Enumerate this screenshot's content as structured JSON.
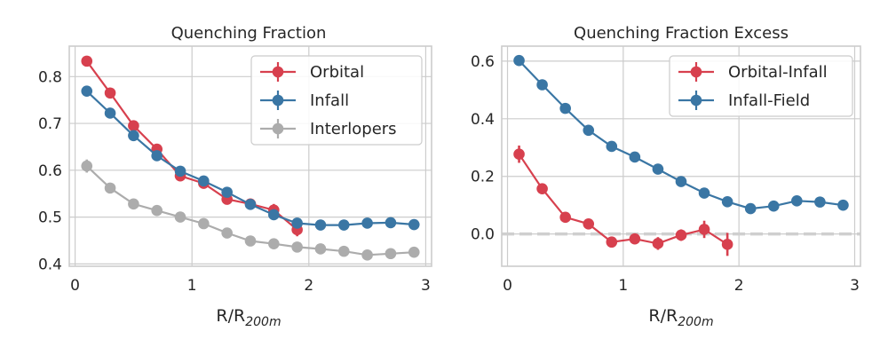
{
  "chart_data": [
    {
      "type": "line",
      "title": "Quenching Fraction",
      "xlabel": "R/R",
      "xlabel_sub": "200m",
      "xlim": [
        -0.05,
        3.05
      ],
      "ylim": [
        0.395,
        0.865
      ],
      "xticks": [
        0,
        1,
        2,
        3
      ],
      "yticks": [
        0.4,
        0.5,
        0.6,
        0.7,
        0.8
      ],
      "ytick_labels": [
        "0.4",
        "0.5",
        "0.6",
        "0.7",
        "0.8"
      ],
      "grid": true,
      "legend_position": "top-right",
      "series": [
        {
          "name": "Orbital",
          "color": "#d7404e",
          "x": [
            0.1,
            0.3,
            0.5,
            0.7,
            0.9,
            1.1,
            1.3,
            1.5,
            1.7,
            1.9
          ],
          "y": [
            0.833,
            0.765,
            0.695,
            0.645,
            0.588,
            0.572,
            0.538,
            0.528,
            0.515,
            0.473
          ],
          "err": [
            0.006,
            0.007,
            0.008,
            0.009,
            0.009,
            0.01,
            0.01,
            0.011,
            0.013,
            0.014
          ]
        },
        {
          "name": "Infall",
          "color": "#3a76a4",
          "x": [
            0.1,
            0.3,
            0.5,
            0.7,
            0.9,
            1.1,
            1.3,
            1.5,
            1.7,
            1.9,
            2.1,
            2.3,
            2.5,
            2.7,
            2.9
          ],
          "y": [
            0.769,
            0.722,
            0.674,
            0.631,
            0.598,
            0.577,
            0.553,
            0.527,
            0.505,
            0.487,
            0.483,
            0.483,
            0.487,
            0.488,
            0.484
          ],
          "err": [
            0.005,
            0.005,
            0.005,
            0.005,
            0.005,
            0.005,
            0.005,
            0.005,
            0.005,
            0.005,
            0.005,
            0.005,
            0.005,
            0.005,
            0.005
          ]
        },
        {
          "name": "Interlopers",
          "color": "#acacac",
          "x": [
            0.1,
            0.3,
            0.5,
            0.7,
            0.9,
            1.1,
            1.3,
            1.5,
            1.7,
            1.9,
            2.1,
            2.3,
            2.5,
            2.7,
            2.9
          ],
          "y": [
            0.609,
            0.562,
            0.528,
            0.514,
            0.5,
            0.486,
            0.466,
            0.449,
            0.443,
            0.436,
            0.432,
            0.427,
            0.419,
            0.422,
            0.425
          ],
          "err": [
            0.014,
            0.006,
            0.005,
            0.004,
            0.004,
            0.004,
            0.004,
            0.004,
            0.004,
            0.004,
            0.004,
            0.004,
            0.004,
            0.004,
            0.004
          ]
        }
      ]
    },
    {
      "type": "line",
      "title": "Quenching Fraction Excess",
      "xlabel": "R/R",
      "xlabel_sub": "200m",
      "xlim": [
        -0.05,
        3.05
      ],
      "ylim": [
        -0.112,
        0.652
      ],
      "xticks": [
        0,
        1,
        2,
        3
      ],
      "yticks": [
        0,
        0.2,
        0.4,
        0.6
      ],
      "ytick_labels": [
        "0.0",
        "0.2",
        "0.4",
        "0.6"
      ],
      "grid": true,
      "legend_position": "top-right",
      "reference_line": {
        "y": 0,
        "color": "#cfcfcf",
        "style": "dashed"
      },
      "series": [
        {
          "name": "Orbital-Infall",
          "color": "#d7404e",
          "x": [
            0.1,
            0.3,
            0.5,
            0.7,
            0.9,
            1.1,
            1.3,
            1.5,
            1.7,
            1.9
          ],
          "y": [
            0.277,
            0.157,
            0.058,
            0.035,
            -0.028,
            -0.017,
            -0.033,
            -0.004,
            0.016,
            -0.036
          ],
          "err": [
            0.03,
            0.012,
            0.01,
            0.012,
            0.012,
            0.012,
            0.022,
            0.02,
            0.03,
            0.04
          ]
        },
        {
          "name": "Infall-Field",
          "color": "#3a76a4",
          "x": [
            0.1,
            0.3,
            0.5,
            0.7,
            0.9,
            1.1,
            1.3,
            1.5,
            1.7,
            1.9,
            2.1,
            2.3,
            2.5,
            2.7,
            2.9
          ],
          "y": [
            0.602,
            0.518,
            0.436,
            0.36,
            0.304,
            0.267,
            0.225,
            0.182,
            0.142,
            0.112,
            0.088,
            0.097,
            0.115,
            0.111,
            0.1
          ],
          "err": [
            0.006,
            0.006,
            0.006,
            0.006,
            0.006,
            0.006,
            0.006,
            0.006,
            0.006,
            0.006,
            0.006,
            0.006,
            0.006,
            0.006,
            0.006
          ]
        }
      ]
    }
  ]
}
